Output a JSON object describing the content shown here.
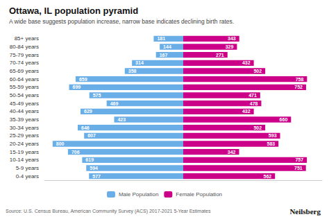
{
  "chart_data": {
    "type": "bar",
    "orientation": "horizontal",
    "title": "Ottawa, IL population pyramid",
    "subtitle": "A wide base suggests population increase, narrow base indicates declining birth rates.",
    "annotations": [
      "Source: U.S. Census Bureau, American Community Survey (ACS) 2017-2021 5-Year Estimates",
      "Neilsberg"
    ],
    "categories": [
      "85+ years",
      "80-84 years",
      "75-79 years",
      "70-74 years",
      "65-69 years",
      "60-64 years",
      "55-59 years",
      "50-54 years",
      "45-49 years",
      "40-44 years",
      "35-39 years",
      "30-34 years",
      "25-29 years",
      "20-24 years",
      "15-19 years",
      "10-14 years",
      "5-9 years",
      "0-4 years"
    ],
    "series": [
      {
        "name": "Male Population",
        "color": "#6aaee8",
        "values": [
          181,
          144,
          167,
          314,
          358,
          659,
          699,
          575,
          469,
          629,
          423,
          646,
          607,
          800,
          706,
          619,
          594,
          577
        ]
      },
      {
        "name": "Female Population",
        "color": "#cc0088",
        "values": [
          343,
          329,
          271,
          432,
          502,
          758,
          752,
          471,
          478,
          432,
          660,
          502,
          593,
          583,
          342,
          757,
          751,
          562
        ]
      }
    ],
    "xlim": [
      0,
      850
    ],
    "data_labels": true,
    "tick_labels": "y",
    "grid": false,
    "legend": "bottom"
  }
}
